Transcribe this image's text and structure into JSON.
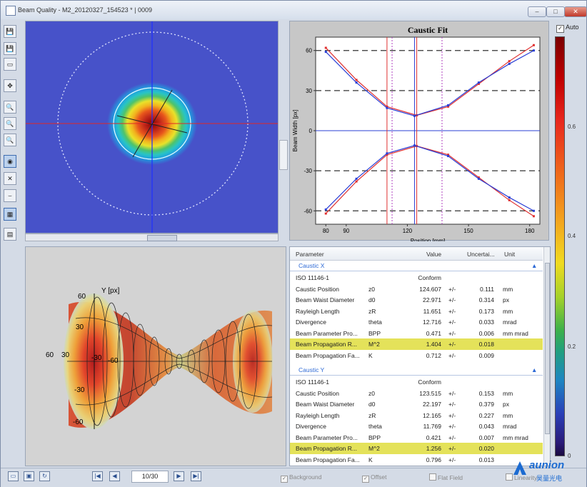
{
  "window": {
    "title": "Beam Quality - M2_20120327_154523 * | 0009",
    "minimize": "–",
    "maximize": "□",
    "close": "✕"
  },
  "toolbar": {
    "icons": [
      "save-icon",
      "save-as-icon",
      "copy-icon",
      "move-icon",
      "zoom-in-icon",
      "zoom-out-icon",
      "zoom-fit-icon",
      "beam-view-icon",
      "caustic-view-icon",
      "fit-view-icon",
      "table-view-icon",
      "report-icon"
    ]
  },
  "caustic_fit": {
    "chart_data": {
      "type": "line",
      "title": "Caustic Fit",
      "xlabel": "Position [mm]",
      "ylabel": "Beam Width [px]",
      "xlim": [
        75,
        185
      ],
      "ylim": [
        -70,
        70
      ],
      "xticks": [
        90,
        120,
        150,
        180
      ],
      "xticks_extra": [
        80
      ],
      "yticks": [
        60,
        30,
        0,
        -30,
        -60
      ],
      "series": [
        {
          "color": "#e03030",
          "x": [
            80,
            95,
            110,
            124.6,
            140,
            155,
            170,
            182
          ],
          "y": [
            62,
            38,
            18,
            11.5,
            18,
            35,
            52,
            64
          ]
        },
        {
          "color": "#2a3fd6",
          "x": [
            80,
            95,
            110,
            123.5,
            140,
            155,
            170,
            182
          ],
          "y": [
            59,
            36,
            17,
            11.1,
            19,
            36,
            50,
            60
          ]
        }
      ],
      "vlines": [
        {
          "x": 110,
          "color": "#e03030"
        },
        {
          "x": 112.5,
          "color": "#b040c0"
        },
        {
          "x": 123.5,
          "color": "#2a3fd6"
        },
        {
          "x": 124.6,
          "color": "#e03030"
        },
        {
          "x": 137,
          "color": "#b040c0"
        }
      ],
      "hlines_dashed": [
        60,
        30,
        -30,
        -60
      ],
      "grid": false
    }
  },
  "view3d": {
    "axis_label": "Y [px]",
    "ticks": [
      "60",
      "30",
      "-30",
      "-60"
    ],
    "xticks": [
      "60",
      "30",
      "-30",
      "-60"
    ]
  },
  "table": {
    "columns": [
      "Parameter",
      "Value",
      "Uncertai...",
      "Unit"
    ],
    "groups": [
      {
        "name": "Caustic X",
        "rows": [
          {
            "param": "ISO 11146-1",
            "sym": "",
            "value": "Conform",
            "pm": "",
            "unc": "",
            "unit": ""
          },
          {
            "param": "Caustic Position",
            "sym": "z0",
            "value": "124.607",
            "pm": "+/-",
            "unc": "0.111",
            "unit": "mm"
          },
          {
            "param": "Beam Waist Diameter",
            "sym": "d0",
            "value": "22.971",
            "pm": "+/-",
            "unc": "0.314",
            "unit": "px"
          },
          {
            "param": "Rayleigh Length",
            "sym": "zR",
            "value": "11.651",
            "pm": "+/-",
            "unc": "0.173",
            "unit": "mm"
          },
          {
            "param": "Divergence",
            "sym": "theta",
            "value": "12.716",
            "pm": "+/-",
            "unc": "0.033",
            "unit": "mrad"
          },
          {
            "param": "Beam Parameter Pro...",
            "sym": "BPP",
            "value": "0.471",
            "pm": "+/-",
            "unc": "0.006",
            "unit": "mm mrad"
          },
          {
            "param": "Beam Propagation R...",
            "sym": "M^2",
            "value": "1.404",
            "pm": "+/-",
            "unc": "0.018",
            "unit": "",
            "hl": true
          },
          {
            "param": "Beam Propagation Fa...",
            "sym": "K",
            "value": "0.712",
            "pm": "+/-",
            "unc": "0.009",
            "unit": ""
          }
        ]
      },
      {
        "name": "Caustic Y",
        "rows": [
          {
            "param": "ISO 11146-1",
            "sym": "",
            "value": "Conform",
            "pm": "",
            "unc": "",
            "unit": ""
          },
          {
            "param": "Caustic Position",
            "sym": "z0",
            "value": "123.515",
            "pm": "+/-",
            "unc": "0.153",
            "unit": "mm"
          },
          {
            "param": "Beam Waist Diameter",
            "sym": "d0",
            "value": "22.197",
            "pm": "+/-",
            "unc": "0.379",
            "unit": "px"
          },
          {
            "param": "Rayleigh Length",
            "sym": "zR",
            "value": "12.165",
            "pm": "+/-",
            "unc": "0.227",
            "unit": "mm"
          },
          {
            "param": "Divergence",
            "sym": "theta",
            "value": "11.769",
            "pm": "+/-",
            "unc": "0.043",
            "unit": "mrad"
          },
          {
            "param": "Beam Parameter Pro...",
            "sym": "BPP",
            "value": "0.421",
            "pm": "+/-",
            "unc": "0.007",
            "unit": "mm mrad"
          },
          {
            "param": "Beam Propagation R...",
            "sym": "M^2",
            "value": "1.256",
            "pm": "+/-",
            "unc": "0.020",
            "unit": "",
            "hl": true
          },
          {
            "param": "Beam Propagation Fa...",
            "sym": "K",
            "value": "0.796",
            "pm": "+/-",
            "unc": "0.013",
            "unit": ""
          }
        ]
      }
    ]
  },
  "colorbar": {
    "auto_label": "Auto",
    "auto_checked": true,
    "ticks": [
      "0.6",
      "0.4",
      "0.2",
      "0"
    ]
  },
  "status": {
    "page": "10/30",
    "checks": [
      {
        "label": "Background",
        "checked": true
      },
      {
        "label": "Offset",
        "checked": true
      },
      {
        "label": "Flat Field",
        "checked": false
      },
      {
        "label": "Linearity",
        "checked": false
      }
    ]
  },
  "watermark": {
    "brand": "aunion",
    "sub": "昊量光电"
  }
}
